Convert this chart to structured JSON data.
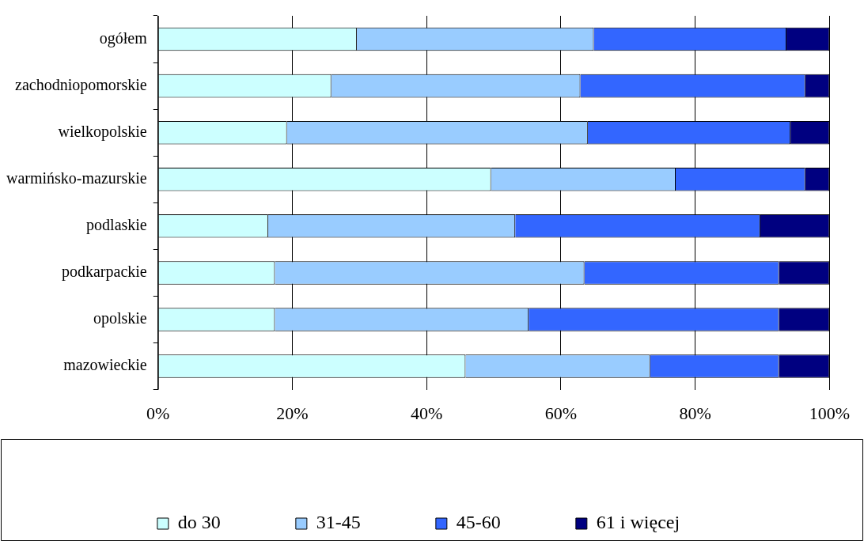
{
  "chart_data": {
    "type": "bar",
    "orientation": "horizontal",
    "stacked": true,
    "categories": [
      "ogółem",
      "zachodniopomorskie",
      "wielkopolskie",
      "warmińsko-mazurskie",
      "podlaskie",
      "podkarpackie",
      "opolskie",
      "mazowieckie"
    ],
    "series": [
      {
        "name": "do 30",
        "color": "#ccffff",
        "values": [
          29.6,
          25.8,
          19.2,
          49.6,
          16.4,
          17.4,
          17.4,
          45.8
        ]
      },
      {
        "name": "31-45",
        "color": "#99ccff",
        "values": [
          35.3,
          37.1,
          44.8,
          27.5,
          36.8,
          46.1,
          37.8,
          27.5
        ]
      },
      {
        "name": "45-60",
        "color": "#3366ff",
        "values": [
          28.7,
          33.5,
          30.2,
          19.3,
          36.5,
          29.0,
          37.3,
          19.2
        ]
      },
      {
        "name": "61 i więcej",
        "color": "#000080",
        "values": [
          6.4,
          3.6,
          5.8,
          3.6,
          10.3,
          7.5,
          7.5,
          7.5
        ]
      }
    ],
    "xlim": [
      0,
      100
    ],
    "xticks": [
      {
        "value": 0,
        "label": "0%"
      },
      {
        "value": 20,
        "label": "20%"
      },
      {
        "value": 40,
        "label": "40%"
      },
      {
        "value": 60,
        "label": "60%"
      },
      {
        "value": 80,
        "label": "80%"
      },
      {
        "value": 100,
        "label": "100%"
      }
    ],
    "grid": "x",
    "legend": "bottom"
  }
}
